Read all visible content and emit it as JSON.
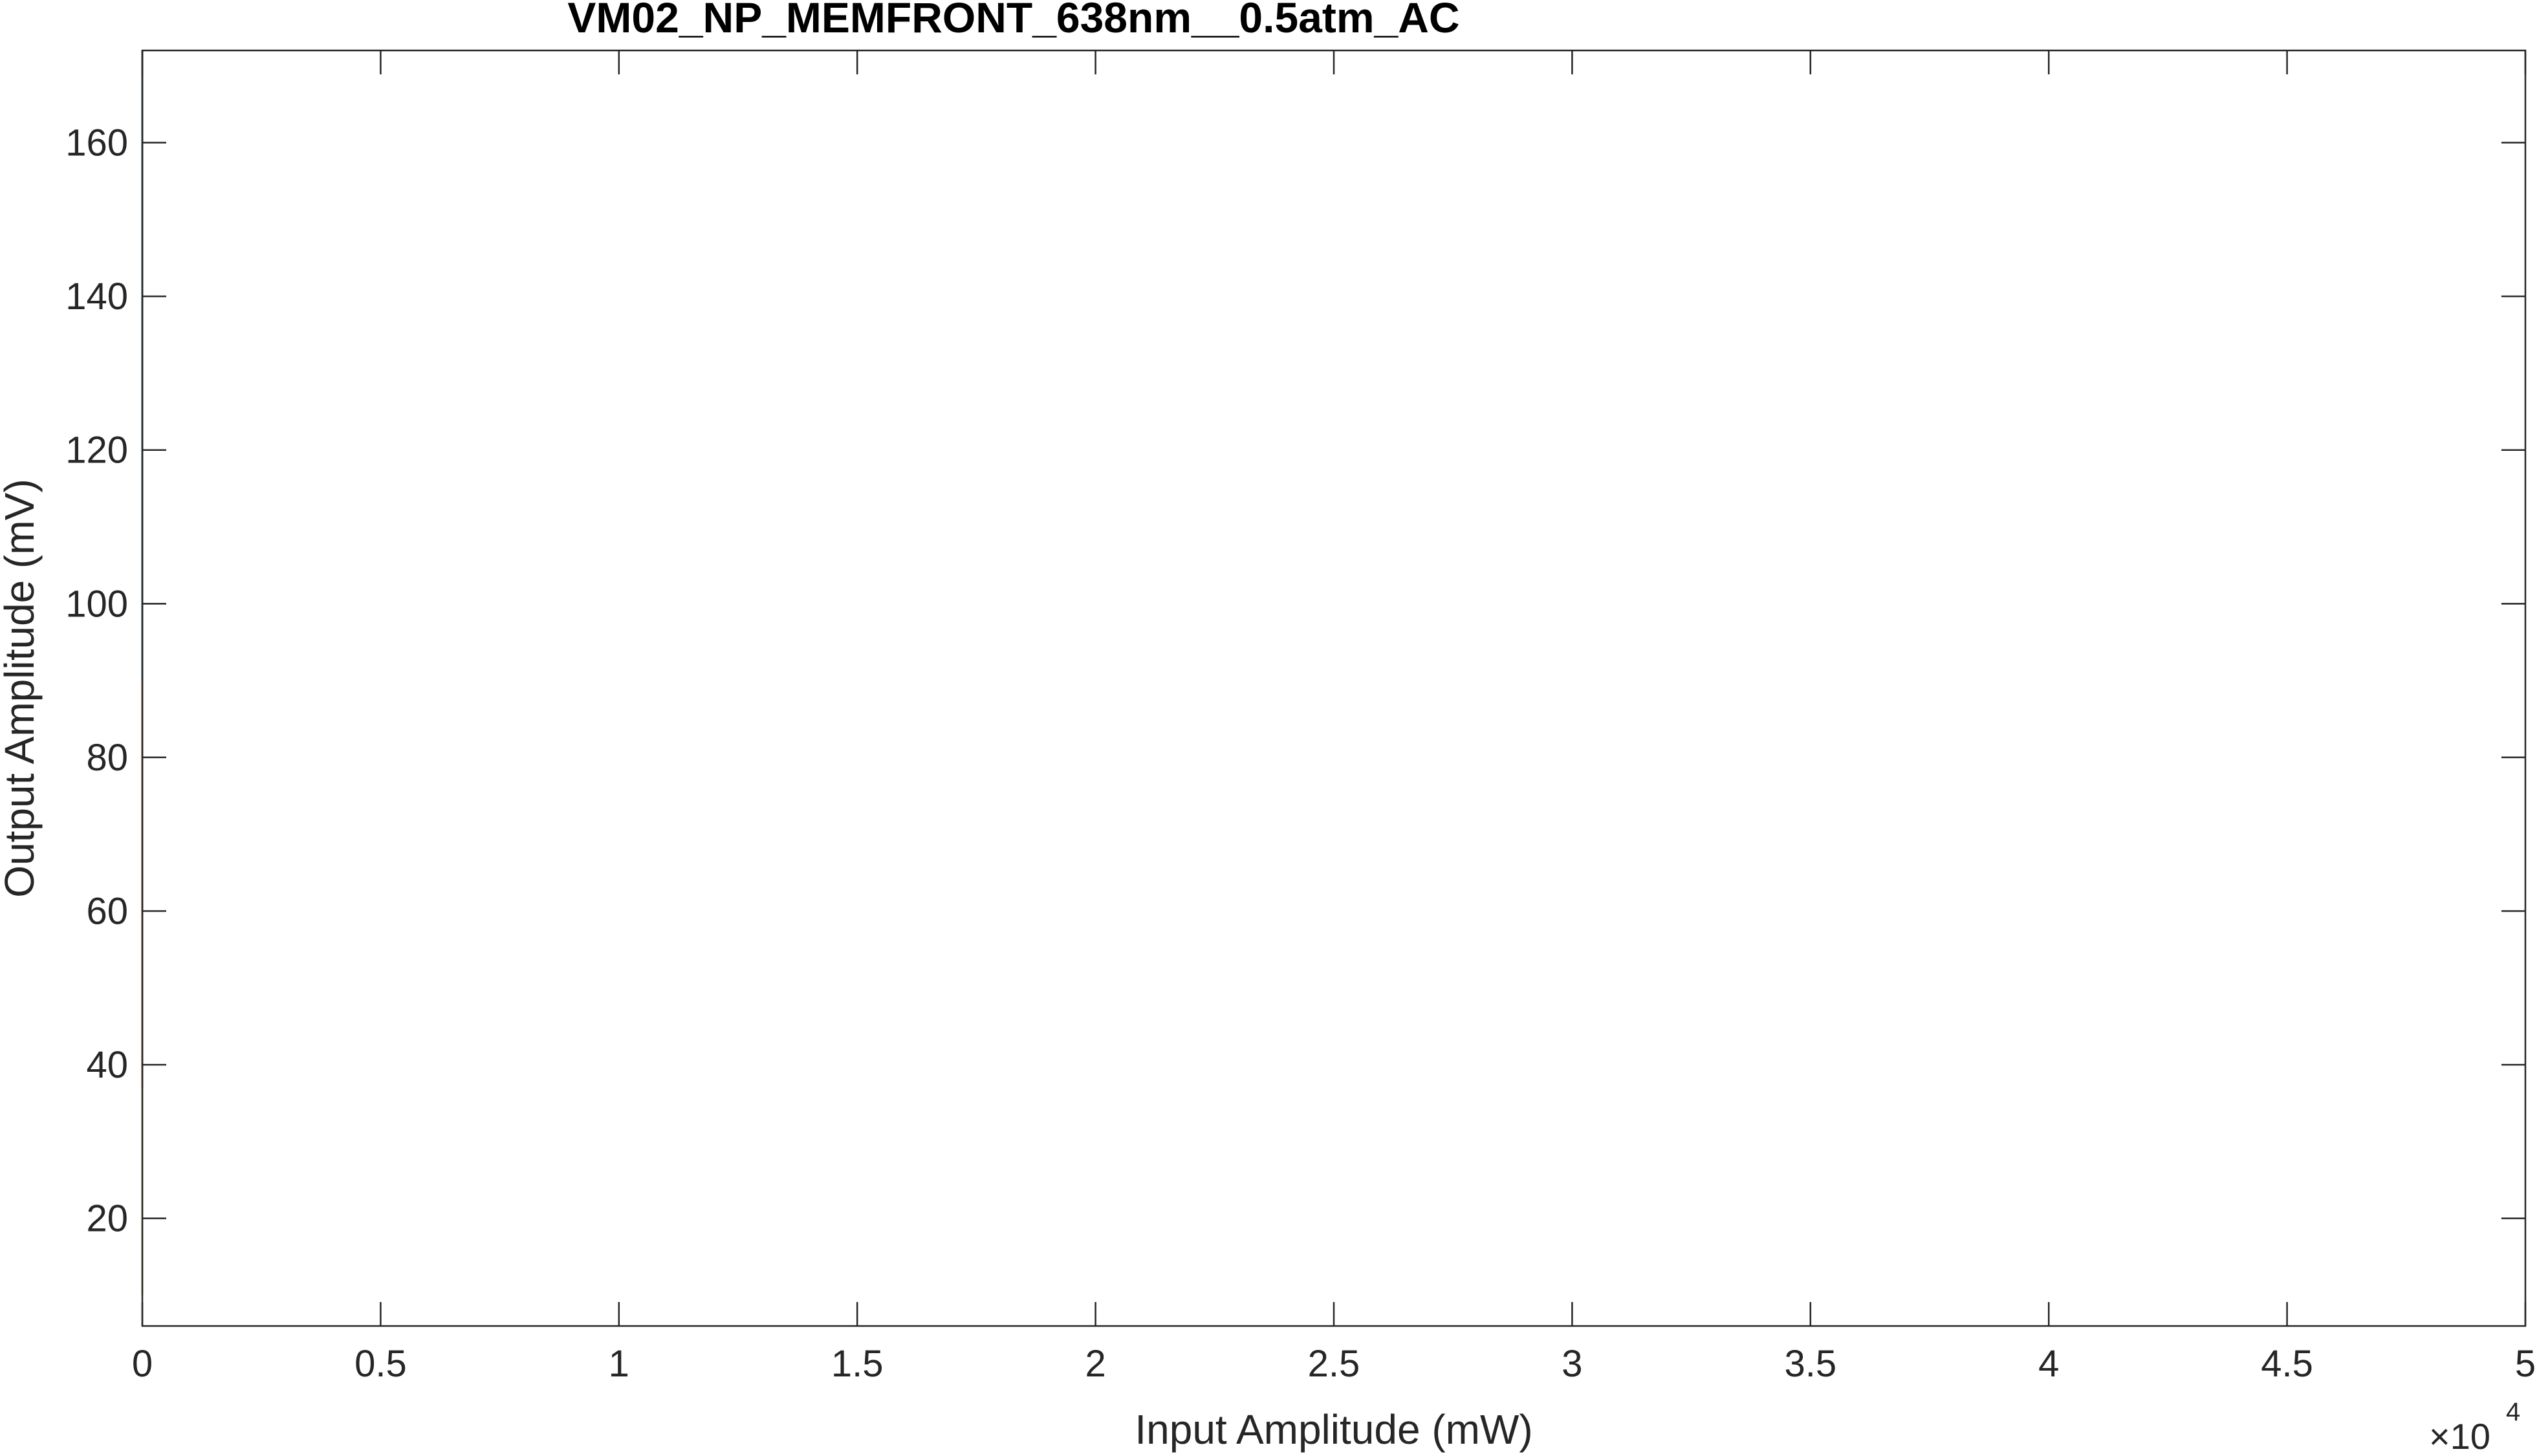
{
  "chart_data": {
    "type": "line",
    "title": "VM02_NP_MEMFRONT_638nm__0.5atm_AC",
    "xlabel": "Input Amplitude (mW)",
    "ylabel": "Output Amplitude (mV)",
    "x_exponent_label": {
      "base": "×10",
      "exponent": "4"
    },
    "xlim": [
      0,
      50000
    ],
    "ylim": [
      6,
      172
    ],
    "x_ticks": [
      0,
      5000,
      10000,
      15000,
      20000,
      25000,
      30000,
      35000,
      40000,
      45000,
      50000
    ],
    "x_tick_labels": [
      "0",
      "0.5",
      "1",
      "1.5",
      "2",
      "2.5",
      "3",
      "3.5",
      "4",
      "4.5",
      "5"
    ],
    "y_ticks": [
      20,
      40,
      60,
      80,
      100,
      120,
      140,
      160
    ],
    "y_tick_labels": [
      "20",
      "40",
      "60",
      "80",
      "100",
      "120",
      "140",
      "160"
    ],
    "grid": false,
    "box": true,
    "series": [
      {
        "color": "#0072BD",
        "x": [
          0,
          0
        ],
        "y": [
          90,
          172
        ]
      },
      {
        "color": "#D95319",
        "x": [
          0,
          0
        ],
        "y": [
          37,
          90
        ]
      },
      {
        "color": "#EDB120",
        "x": [
          0,
          0
        ],
        "y": [
          10,
          37
        ]
      }
    ]
  }
}
